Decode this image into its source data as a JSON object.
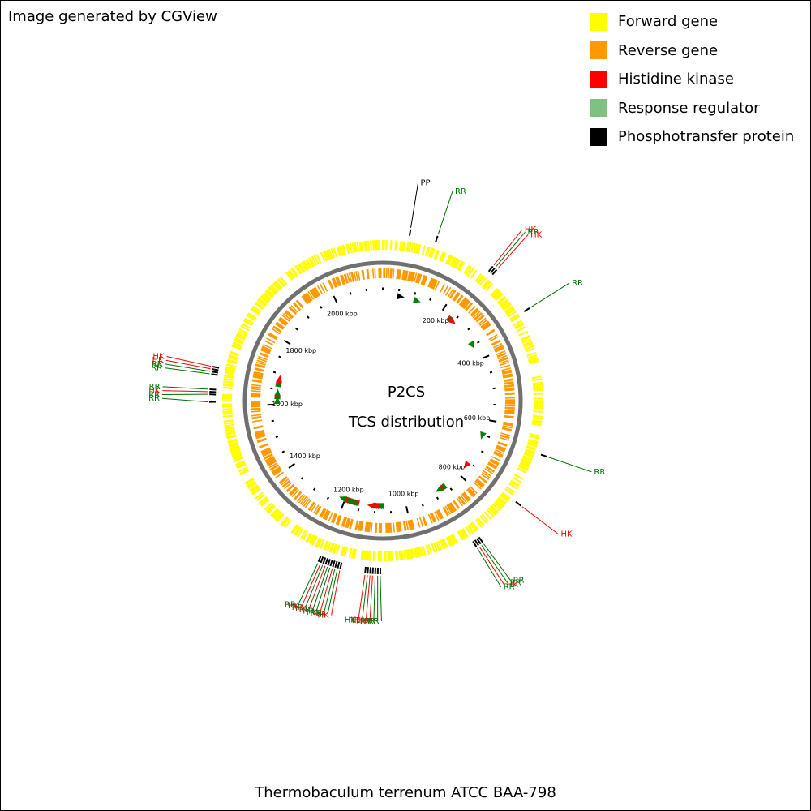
{
  "credit": "Image generated by CGView",
  "center_title": "P2CS",
  "center_subtitle": "TCS distribution",
  "organism": "Thermobaculum terrenum ATCC BAA-798",
  "legend": [
    {
      "label": "Forward gene",
      "color": "#ffff00"
    },
    {
      "label": "Reverse gene",
      "color": "#ff9900"
    },
    {
      "label": "Histidine kinase",
      "color": "#ff0000"
    },
    {
      "label": "Response regulator",
      "color": "#80c080"
    },
    {
      "label": "Phosphotransfer protein",
      "color": "#000000"
    }
  ],
  "colors": {
    "forward": "#ffff00",
    "reverse": "#ff9900",
    "backbone": "#707070",
    "hk_label": "#ff0000",
    "rr_label": "#007000",
    "rr_marker": "#008000",
    "hk_marker": "#ff0000",
    "pp_label": "#000000"
  },
  "chart_data": {
    "type": "circular-genome-map",
    "genome_length_kbp": 2150,
    "ticks": [
      {
        "kbp": 200,
        "label": "200 kbp"
      },
      {
        "kbp": 400,
        "label": "400 kbp"
      },
      {
        "kbp": 600,
        "label": "600 kbp"
      },
      {
        "kbp": 800,
        "label": "800 kbp"
      },
      {
        "kbp": 1000,
        "label": "1000 kbp"
      },
      {
        "kbp": 1200,
        "label": "1200 kbp"
      },
      {
        "kbp": 1400,
        "label": "1400 kbp"
      },
      {
        "kbp": 1600,
        "label": "1600 kbp"
      },
      {
        "kbp": 1800,
        "label": "1800 kbp"
      },
      {
        "kbp": 2000,
        "label": "2000 kbp"
      }
    ],
    "features": [
      {
        "kbp": 55,
        "type": "PP",
        "label": "PP"
      },
      {
        "kbp": 110,
        "type": "RR",
        "label": "RR"
      },
      {
        "kbp": 235,
        "type": "HK",
        "label": "HK"
      },
      {
        "kbp": 240,
        "type": "RR",
        "label": "RR"
      },
      {
        "kbp": 245,
        "type": "HK",
        "label": "HK"
      },
      {
        "kbp": 345,
        "type": "RR",
        "label": "RR"
      },
      {
        "kbp": 650,
        "type": "RR",
        "label": "RR"
      },
      {
        "kbp": 760,
        "type": "HK",
        "label": "HK"
      },
      {
        "kbp": 865,
        "type": "RR",
        "label": "RR"
      },
      {
        "kbp": 870,
        "type": "RR",
        "label": "RR"
      },
      {
        "kbp": 875,
        "type": "HK",
        "label": "HK"
      },
      {
        "kbp": 880,
        "type": "RR",
        "label": "RR"
      },
      {
        "kbp": 1080,
        "type": "RR",
        "label": "RR"
      },
      {
        "kbp": 1085,
        "type": "RR",
        "label": "RR"
      },
      {
        "kbp": 1090,
        "type": "RR",
        "label": "RR"
      },
      {
        "kbp": 1095,
        "type": "HK",
        "label": "HK"
      },
      {
        "kbp": 1100,
        "type": "HK",
        "label": "HK"
      },
      {
        "kbp": 1105,
        "type": "RR",
        "label": "RR"
      },
      {
        "kbp": 1110,
        "type": "HK",
        "label": "HK"
      },
      {
        "kbp": 1160,
        "type": "HK",
        "label": "HK"
      },
      {
        "kbp": 1165,
        "type": "RR",
        "label": "RR"
      },
      {
        "kbp": 1170,
        "type": "RR",
        "label": "RR"
      },
      {
        "kbp": 1175,
        "type": "HK",
        "label": "HK"
      },
      {
        "kbp": 1180,
        "type": "RR",
        "label": "RR"
      },
      {
        "kbp": 1185,
        "type": "RR",
        "label": "RR"
      },
      {
        "kbp": 1190,
        "type": "HK",
        "label": "HK"
      },
      {
        "kbp": 1195,
        "type": "RR",
        "label": "RR"
      },
      {
        "kbp": 1200,
        "type": "HK",
        "label": "HK"
      },
      {
        "kbp": 1205,
        "type": "RR",
        "label": "RR"
      },
      {
        "kbp": 1610,
        "type": "RR",
        "label": "RR"
      },
      {
        "kbp": 1625,
        "type": "RR",
        "label": "RR"
      },
      {
        "kbp": 1630,
        "type": "HK",
        "label": "HK"
      },
      {
        "kbp": 1635,
        "type": "RR",
        "label": "RR"
      },
      {
        "kbp": 1665,
        "type": "RR",
        "label": "RR"
      },
      {
        "kbp": 1670,
        "type": "RR",
        "label": "RR"
      },
      {
        "kbp": 1675,
        "type": "HK",
        "label": "HK"
      },
      {
        "kbp": 1680,
        "type": "HK",
        "label": "HK"
      }
    ]
  }
}
